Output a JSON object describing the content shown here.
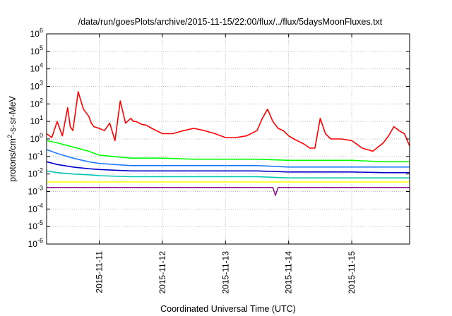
{
  "chart_data": {
    "type": "line",
    "title": "/data/run/goesPlots/archive/2015-11-15/22:00/flux/../flux/5daysMoonFluxes.txt",
    "xlabel": "Coordinated Universal Time (UTC)",
    "ylabel": "protons/cm²-s-sr-MeV",
    "ylabel_parts": {
      "prefix": "protons/cm",
      "sup": "2",
      "suffix": "-s-sr-MeV"
    },
    "yscale": "log",
    "ylim": [
      1e-06,
      1000000.0
    ],
    "yticks": [
      {
        "base": "10",
        "exp": "-6"
      },
      {
        "base": "10",
        "exp": "-5"
      },
      {
        "base": "10",
        "exp": "-4"
      },
      {
        "base": "10",
        "exp": "-3"
      },
      {
        "base": "10",
        "exp": "-2"
      },
      {
        "base": "10",
        "exp": "-1"
      },
      {
        "base": "10",
        "exp": "0"
      },
      {
        "base": "10",
        "exp": "1"
      },
      {
        "base": "10",
        "exp": "2"
      },
      {
        "base": "10",
        "exp": "3"
      },
      {
        "base": "10",
        "exp": "4"
      },
      {
        "base": "10",
        "exp": "5"
      },
      {
        "base": "10",
        "exp": "6"
      }
    ],
    "xlim": [
      "2015-11-10 04:00",
      "2015-11-15 22:00"
    ],
    "xticks": [
      "2015-11-11",
      "2015-11-12",
      "2015-11-13",
      "2015-11-14",
      "2015-11-15"
    ],
    "grid": true,
    "series": [
      {
        "color": "#ff0000",
        "x": [
          "2015-11-10 04:00",
          "2015-11-10 06:00",
          "2015-11-10 08:00",
          "2015-11-10 10:00",
          "2015-11-10 12:00",
          "2015-11-10 13:00",
          "2015-11-10 14:00",
          "2015-11-10 16:00",
          "2015-11-10 18:00",
          "2015-11-10 20:00",
          "2015-11-10 21:00",
          "2015-11-10 22:00",
          "2015-11-11 00:00",
          "2015-11-11 02:00",
          "2015-11-11 04:00",
          "2015-11-11 06:00",
          "2015-11-11 08:00",
          "2015-11-11 10:00",
          "2015-11-11 12:00",
          "2015-11-11 13:00",
          "2015-11-11 14:00",
          "2015-11-11 16:00",
          "2015-11-11 18:00",
          "2015-11-11 20:00",
          "2015-11-12 00:00",
          "2015-11-12 04:00",
          "2015-11-12 08:00",
          "2015-11-12 12:00",
          "2015-11-12 16:00",
          "2015-11-12 20:00",
          "2015-11-13 00:00",
          "2015-11-13 04:00",
          "2015-11-13 08:00",
          "2015-11-13 12:00",
          "2015-11-13 14:00",
          "2015-11-13 16:00",
          "2015-11-13 18:00",
          "2015-11-13 20:00",
          "2015-11-13 22:00",
          "2015-11-14 00:00",
          "2015-11-14 02:00",
          "2015-11-14 04:00",
          "2015-11-14 06:00",
          "2015-11-14 08:00",
          "2015-11-14 10:00",
          "2015-11-14 12:00",
          "2015-11-14 14:00",
          "2015-11-14 16:00",
          "2015-11-14 20:00",
          "2015-11-15 00:00",
          "2015-11-15 04:00",
          "2015-11-15 08:00",
          "2015-11-15 12:00",
          "2015-11-15 14:00",
          "2015-11-15 16:00",
          "2015-11-15 18:00",
          "2015-11-15 20:00",
          "2015-11-15 22:00"
        ],
        "values": [
          2,
          1.2,
          10,
          1.5,
          60,
          5,
          3,
          500,
          50,
          20,
          8,
          5,
          4,
          3,
          8,
          0.8,
          150,
          8,
          15,
          10,
          10,
          7,
          6,
          4,
          2,
          2,
          3,
          4,
          3,
          2,
          1.2,
          1.2,
          1.5,
          3,
          15,
          50,
          10,
          4,
          3,
          1.5,
          1,
          0.7,
          0.5,
          0.3,
          0.3,
          15,
          2,
          1,
          1,
          0.8,
          0.3,
          0.2,
          0.6,
          1.5,
          5,
          3,
          2,
          0.4
        ]
      },
      {
        "color": "#00ff00",
        "x": [
          "2015-11-10 04:00",
          "2015-11-10 08:00",
          "2015-11-10 14:00",
          "2015-11-10 20:00",
          "2015-11-11 00:00",
          "2015-11-11 12:00",
          "2015-11-12 00:00",
          "2015-11-12 12:00",
          "2015-11-13 00:00",
          "2015-11-13 12:00",
          "2015-11-14 00:00",
          "2015-11-14 12:00",
          "2015-11-15 00:00",
          "2015-11-15 12:00",
          "2015-11-15 22:00"
        ],
        "values": [
          0.8,
          0.6,
          0.35,
          0.2,
          0.12,
          0.08,
          0.08,
          0.07,
          0.07,
          0.07,
          0.06,
          0.06,
          0.06,
          0.05,
          0.05
        ]
      },
      {
        "color": "#1e7bff",
        "x": [
          "2015-11-10 04:00",
          "2015-11-10 08:00",
          "2015-11-10 14:00",
          "2015-11-10 20:00",
          "2015-11-11 00:00",
          "2015-11-11 12:00",
          "2015-11-12 00:00",
          "2015-11-12 12:00",
          "2015-11-13 00:00",
          "2015-11-13 12:00",
          "2015-11-14 00:00",
          "2015-11-14 12:00",
          "2015-11-15 00:00",
          "2015-11-15 12:00",
          "2015-11-15 22:00"
        ],
        "values": [
          0.25,
          0.15,
          0.08,
          0.05,
          0.04,
          0.03,
          0.03,
          0.03,
          0.03,
          0.03,
          0.025,
          0.025,
          0.025,
          0.025,
          0.025
        ]
      },
      {
        "color": "#0000cc",
        "x": [
          "2015-11-10 04:00",
          "2015-11-10 08:00",
          "2015-11-10 14:00",
          "2015-11-10 20:00",
          "2015-11-11 00:00",
          "2015-11-11 12:00",
          "2015-11-12 00:00",
          "2015-11-12 12:00",
          "2015-11-13 00:00",
          "2015-11-13 12:00",
          "2015-11-14 00:00",
          "2015-11-14 12:00",
          "2015-11-15 00:00",
          "2015-11-15 12:00",
          "2015-11-15 22:00"
        ],
        "values": [
          0.05,
          0.035,
          0.025,
          0.02,
          0.018,
          0.015,
          0.015,
          0.015,
          0.015,
          0.015,
          0.013,
          0.013,
          0.013,
          0.012,
          0.012
        ]
      },
      {
        "color": "#00c8b0",
        "x": [
          "2015-11-10 04:00",
          "2015-11-10 08:00",
          "2015-11-10 14:00",
          "2015-11-10 20:00",
          "2015-11-11 00:00",
          "2015-11-11 12:00",
          "2015-11-12 00:00",
          "2015-11-12 12:00",
          "2015-11-13 00:00",
          "2015-11-13 12:00",
          "2015-11-14 00:00",
          "2015-11-14 12:00",
          "2015-11-15 00:00",
          "2015-11-15 12:00",
          "2015-11-15 22:00"
        ],
        "values": [
          0.015,
          0.012,
          0.01,
          0.009,
          0.008,
          0.007,
          0.007,
          0.007,
          0.007,
          0.007,
          0.006,
          0.006,
          0.006,
          0.006,
          0.006
        ]
      },
      {
        "color": "#ffff00",
        "x": [
          "2015-11-10 04:00",
          "2015-11-11 00:00",
          "2015-11-12 00:00",
          "2015-11-13 00:00",
          "2015-11-14 00:00",
          "2015-11-15 00:00",
          "2015-11-15 22:00"
        ],
        "values": [
          0.0035,
          0.0035,
          0.0035,
          0.0035,
          0.0035,
          0.0035,
          0.0035
        ]
      },
      {
        "color": "#8b1a8b",
        "x": [
          "2015-11-10 04:00",
          "2015-11-11 00:00",
          "2015-11-12 00:00",
          "2015-11-13 00:00",
          "2015-11-13 18:00",
          "2015-11-13 19:00",
          "2015-11-13 20:00",
          "2015-11-14 00:00",
          "2015-11-15 00:00",
          "2015-11-15 22:00"
        ],
        "values": [
          0.0017,
          0.0017,
          0.0017,
          0.0017,
          0.0017,
          0.0006,
          0.0017,
          0.0017,
          0.0017,
          0.0017
        ]
      }
    ]
  }
}
